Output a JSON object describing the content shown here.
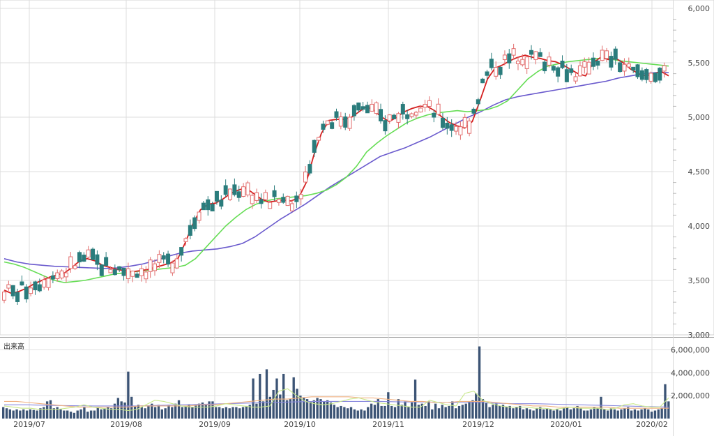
{
  "chart_data": [
    {
      "type": "candlestick",
      "ylim": [
        3000,
        6000
      ],
      "y_ticks": [
        "3,000",
        "3,500",
        "4,000",
        "4,500",
        "5,000",
        "5,500",
        "6,000"
      ],
      "x_ticks": [
        "2019/07",
        "2019/08",
        "2019/09",
        "2019/10",
        "2019/11",
        "2019/12",
        "2020/01",
        "2020/02"
      ],
      "grid": true,
      "colors": {
        "up": "#e26d6d",
        "down": "#2a7c7c",
        "ma_short": "#d42020",
        "ma_mid": "#66dd55",
        "ma_long": "#6a5acd"
      },
      "moving_averages": {
        "short": [
          3410,
          3380,
          3400,
          3430,
          3470,
          3500,
          3530,
          3550,
          3570,
          3620,
          3680,
          3700,
          3680,
          3640,
          3620,
          3600,
          3590,
          3580,
          3590,
          3600,
          3620,
          3640,
          3660,
          3700,
          3850,
          4020,
          4150,
          4200,
          4210,
          4250,
          4300,
          4330,
          4350,
          4300,
          4250,
          4220,
          4230,
          4240,
          4230,
          4260,
          4400,
          4650,
          4850,
          4970,
          4980,
          4980,
          5000,
          5050,
          5100,
          5060,
          5000,
          4960,
          5000,
          5050,
          5080,
          5100,
          5100,
          5060,
          5000,
          4950,
          4920,
          4900,
          4960,
          5150,
          5350,
          5450,
          5480,
          5520,
          5550,
          5570,
          5550,
          5540,
          5520,
          5510,
          5480,
          5440,
          5400,
          5380,
          5500,
          5550,
          5530,
          5540,
          5500,
          5440,
          5400,
          5380,
          5400,
          5420,
          5380
        ],
        "mid": [
          3670,
          3650,
          3620,
          3580,
          3540,
          3500,
          3480,
          3490,
          3500,
          3520,
          3540,
          3560,
          3570,
          3580,
          3590,
          3600,
          3610,
          3620,
          3640,
          3700,
          3800,
          3900,
          4000,
          4080,
          4150,
          4200,
          4230,
          4250,
          4260,
          4270,
          4280,
          4300,
          4330,
          4380,
          4450,
          4550,
          4680,
          4760,
          4830,
          4890,
          4950,
          4990,
          5020,
          5040,
          5050,
          5060,
          5050,
          5060,
          5070,
          5100,
          5150,
          5250,
          5350,
          5420,
          5470,
          5490,
          5510,
          5520,
          5530,
          5540,
          5540,
          5520,
          5510,
          5500,
          5490,
          5480,
          5470
        ],
        "long": [
          3700,
          3670,
          3650,
          3640,
          3630,
          3625,
          3620,
          3615,
          3610,
          3615,
          3630,
          3650,
          3680,
          3720,
          3750,
          3770,
          3780,
          3790,
          3810,
          3840,
          3900,
          3980,
          4060,
          4130,
          4200,
          4280,
          4360,
          4430,
          4500,
          4570,
          4640,
          4680,
          4720,
          4770,
          4820,
          4880,
          4940,
          5000,
          5050,
          5110,
          5160,
          5190,
          5210,
          5230,
          5250,
          5270,
          5290,
          5310,
          5330,
          5360,
          5380,
          5400,
          5410,
          5410
        ]
      }
    },
    {
      "type": "bar",
      "title": "出来高",
      "ylim": [
        0,
        6700000
      ],
      "y_ticks": [
        "2,000,000",
        "4,000,000",
        "6,000,000"
      ],
      "grid": true,
      "colors": {
        "bar": "#3c5475",
        "ma_short": "#c8e88a",
        "ma_mid": "#f0b080",
        "ma_long": "#8888dd"
      },
      "values": [
        1000000,
        900000,
        800000,
        700000,
        800000,
        700000,
        800000,
        700000,
        800000,
        750000,
        700000,
        900000,
        1000000,
        1500000,
        1600000,
        900000,
        1000000,
        800000,
        700000,
        700000,
        600000,
        500000,
        700000,
        800000,
        1000000,
        600000,
        700000,
        700000,
        1000000,
        800000,
        900000,
        1000000,
        900000,
        1300000,
        1800000,
        1500000,
        1400000,
        4100000,
        1900000,
        1100000,
        1200000,
        1000000,
        900000,
        1100000,
        1300000,
        1000000,
        1200000,
        800000,
        900000,
        1200000,
        1000000,
        1300000,
        1600000,
        1000000,
        1100000,
        1200000,
        1000000,
        1200000,
        1300000,
        1400000,
        1200000,
        1500000,
        1500000,
        1000000,
        1000000,
        900000,
        1000000,
        900000,
        1000000,
        1000000,
        900000,
        1000000,
        1100000,
        1200000,
        3500000,
        1300000,
        3900000,
        1500000,
        4300000,
        1900000,
        2500000,
        3500000,
        2100000,
        3900000,
        1600000,
        1700000,
        3600000,
        2600000,
        2000000,
        1800000,
        1700000,
        1500000,
        1600000,
        1800000,
        1700000,
        1500000,
        1600000,
        1400000,
        1200000,
        1000000,
        1100000,
        1000000,
        900000,
        1000000,
        800000,
        700000,
        800000,
        700000,
        1000000,
        1300000,
        1200000,
        1700000,
        1100000,
        1100000,
        2300000,
        1100000,
        1000000,
        1700000,
        1200000,
        1500000,
        1000000,
        1400000,
        3400000,
        1200000,
        1300000,
        1100000,
        1500000,
        800000,
        1300000,
        900000,
        1200000,
        1000000,
        1100000,
        1500000,
        900000,
        1100000,
        1200000,
        1300000,
        1500000,
        1600000,
        2200000,
        6300000,
        1700000,
        1400000,
        1000000,
        1200000,
        1300000,
        1100000,
        1200000,
        1000000,
        1100000,
        900000,
        1000000,
        1100000,
        800000,
        900000,
        800000,
        700000,
        900000,
        1000000,
        800000,
        900000,
        800000,
        700000,
        800000,
        700000,
        900000,
        1000000,
        800000,
        900000,
        1100000,
        900000,
        700000,
        700000,
        800000,
        1000000,
        900000,
        1900000,
        800000,
        700000,
        900000,
        800000,
        700000,
        800000,
        900000,
        1000000,
        700000,
        800000,
        700000,
        800000,
        900000,
        800000,
        600000,
        700000,
        800000,
        900000,
        3000000,
        1500000
      ],
      "moving_averages": {
        "short": [
          1100000,
          1000000,
          900000,
          900000,
          800000,
          800000,
          800000,
          900000,
          1000000,
          1200000,
          1000000,
          900000,
          800000,
          800000,
          700000,
          800000,
          1200000,
          1600000,
          1500000,
          1300000,
          1100000,
          1000000,
          1000000,
          1000000,
          1100000,
          1300000,
          1200000,
          1100000,
          1000000,
          1000000,
          1100000,
          2400000,
          2600000,
          2000000,
          1500000,
          1300000,
          1200000,
          1300000,
          1500000,
          1700000,
          1800000,
          1600000,
          1400000,
          1300000,
          1200000,
          1100000,
          1000000,
          1000000,
          1600000,
          1400000,
          1200000,
          1100000,
          2200000,
          2400000,
          1600000,
          1300000,
          1100000,
          1000000,
          1000000,
          1000000,
          900000,
          900000,
          800000,
          900000,
          1000000,
          900000,
          900000,
          900000,
          800000,
          900000,
          1200000,
          1300000,
          1100000,
          1000000,
          1000000,
          1800000
        ],
        "mid": [
          1500000,
          1500000,
          1400000,
          1300000,
          1200000,
          1100000,
          1000000,
          1000000,
          1000000,
          1000000,
          1000000,
          1100000,
          1100000,
          1100000,
          1100000,
          1100000,
          1200000,
          1200000,
          1300000,
          1400000,
          1500000,
          1600000,
          1700000,
          1700000,
          1800000,
          1900000,
          1900000,
          1900000,
          1900000,
          1800000,
          1800000,
          1700000,
          1600000,
          1500000,
          1500000,
          1400000,
          1400000,
          1500000,
          1500000,
          1500000,
          1400000,
          1300000,
          1200000,
          1100000,
          1100000,
          1000000,
          1000000,
          1000000,
          1000000,
          1000000,
          900000,
          900000,
          900000,
          900000,
          900000
        ],
        "long": [
          1200000,
          1200000,
          1150000,
          1120000,
          1100000,
          1100000,
          1100000,
          1150000,
          1200000,
          1250000,
          1300000,
          1350000,
          1400000,
          1450000,
          1500000,
          1500000,
          1500000,
          1500000,
          1450000,
          1450000,
          1400000,
          1400000,
          1350000,
          1300000,
          1300000,
          1250000,
          1200000,
          1150000,
          1100000,
          1050000,
          1000000
        ]
      }
    }
  ]
}
